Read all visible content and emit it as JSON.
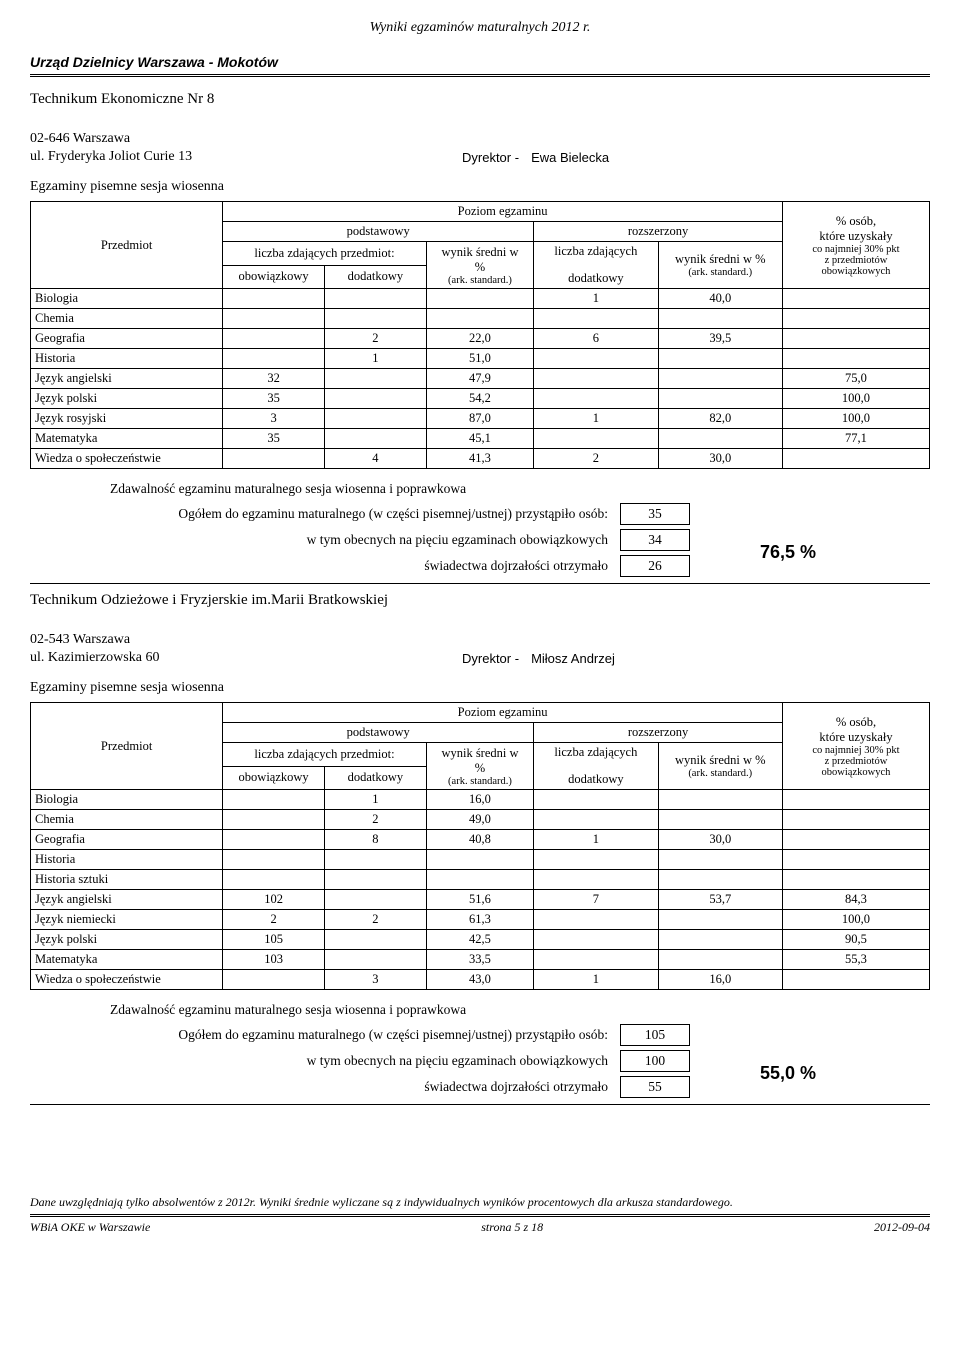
{
  "header": {
    "title": "Wyniki egzaminów maturalnych 2012 r.",
    "district": "Urząd Dzielnicy Warszawa - Mokotów"
  },
  "sections": [
    {
      "school_name": "Technikum Ekonomiczne Nr 8",
      "city": "02-646 Warszawa",
      "street": "ul. Fryderyka Joliot Curie 13",
      "director_label": "Dyrektor -",
      "director_name": "Ewa Bielecka",
      "session_title": "Egzaminy pisemne sesja wiosenna",
      "rows": [
        {
          "subject": "Biologia",
          "o": "",
          "d": "",
          "w": "",
          "ld": "1",
          "wr": "40,0",
          "pp": ""
        },
        {
          "subject": "Chemia",
          "o": "",
          "d": "",
          "w": "",
          "ld": "",
          "wr": "",
          "pp": ""
        },
        {
          "subject": "Geografia",
          "o": "",
          "d": "2",
          "w": "22,0",
          "ld": "6",
          "wr": "39,5",
          "pp": ""
        },
        {
          "subject": "Historia",
          "o": "",
          "d": "1",
          "w": "51,0",
          "ld": "",
          "wr": "",
          "pp": ""
        },
        {
          "subject": "Język angielski",
          "o": "32",
          "d": "",
          "w": "47,9",
          "ld": "",
          "wr": "",
          "pp": "75,0"
        },
        {
          "subject": "Język polski",
          "o": "35",
          "d": "",
          "w": "54,2",
          "ld": "",
          "wr": "",
          "pp": "100,0"
        },
        {
          "subject": "Język rosyjski",
          "o": "3",
          "d": "",
          "w": "87,0",
          "ld": "1",
          "wr": "82,0",
          "pp": "100,0"
        },
        {
          "subject": "Matematyka",
          "o": "35",
          "d": "",
          "w": "45,1",
          "ld": "",
          "wr": "",
          "pp": "77,1"
        },
        {
          "subject": "Wiedza o społeczeństwie",
          "o": "",
          "d": "4",
          "w": "41,3",
          "ld": "2",
          "wr": "30,0",
          "pp": ""
        }
      ],
      "pass": {
        "title": "Zdawalność egzaminu maturalnego sesja wiosenna i poprawkowa",
        "l1": "Ogółem do egzaminu maturalnego (w części pisemnej/ustnej) przystąpiło osób:",
        "l2": "w tym obecnych na pięciu egzaminach obowiązkowych",
        "l3": "świadectwa dojrzałości otrzymało",
        "v1": "35",
        "v2": "34",
        "v3": "26",
        "pct": "76,5 %"
      }
    },
    {
      "school_name": "Technikum Odzieżowe i Fryzjerskie im.Marii Bratkowskiej",
      "city": "02-543 Warszawa",
      "street": "ul. Kazimierzowska 60",
      "director_label": "Dyrektor -",
      "director_name": "Miłosz Andrzej",
      "session_title": "Egzaminy pisemne sesja wiosenna",
      "rows": [
        {
          "subject": "Biologia",
          "o": "",
          "d": "1",
          "w": "16,0",
          "ld": "",
          "wr": "",
          "pp": ""
        },
        {
          "subject": "Chemia",
          "o": "",
          "d": "2",
          "w": "49,0",
          "ld": "",
          "wr": "",
          "pp": ""
        },
        {
          "subject": "Geografia",
          "o": "",
          "d": "8",
          "w": "40,8",
          "ld": "1",
          "wr": "30,0",
          "pp": ""
        },
        {
          "subject": "Historia",
          "o": "",
          "d": "",
          "w": "",
          "ld": "",
          "wr": "",
          "pp": ""
        },
        {
          "subject": "Historia sztuki",
          "o": "",
          "d": "",
          "w": "",
          "ld": "",
          "wr": "",
          "pp": ""
        },
        {
          "subject": "Język angielski",
          "o": "102",
          "d": "",
          "w": "51,6",
          "ld": "7",
          "wr": "53,7",
          "pp": "84,3"
        },
        {
          "subject": "Język niemiecki",
          "o": "2",
          "d": "2",
          "w": "61,3",
          "ld": "",
          "wr": "",
          "pp": "100,0"
        },
        {
          "subject": "Język polski",
          "o": "105",
          "d": "",
          "w": "42,5",
          "ld": "",
          "wr": "",
          "pp": "90,5"
        },
        {
          "subject": "Matematyka",
          "o": "103",
          "d": "",
          "w": "33,5",
          "ld": "",
          "wr": "",
          "pp": "55,3"
        },
        {
          "subject": "Wiedza o społeczeństwie",
          "o": "",
          "d": "3",
          "w": "43,0",
          "ld": "1",
          "wr": "16,0",
          "pp": ""
        }
      ],
      "pass": {
        "title": "Zdawalność egzaminu maturalnego sesja wiosenna i poprawkowa",
        "l1": "Ogółem do egzaminu maturalnego (w części pisemnej/ustnej) przystąpiło osób:",
        "l2": "w tym obecnych na pięciu egzaminach obowiązkowych",
        "l3": "świadectwa dojrzałości otrzymało",
        "v1": "105",
        "v2": "100",
        "v3": "55",
        "pct": "55,0 %"
      }
    }
  ],
  "columns": {
    "subject": "Przedmiot",
    "poziom": "Poziom egzaminu",
    "podstawowy": "podstawowy",
    "rozszerzony": "rozszerzony",
    "liczba_przedmiot": "liczba zdających przedmiot:",
    "wynik_sredni_w": "wynik średni w",
    "pct": "%",
    "ark": "(ark. standard.)",
    "liczba_zdajacych": "liczba zdających",
    "wynik_pct": "wynik średni w %",
    "obowiazkowy": "obowiązkowy",
    "dodatkowy": "dodatkowy",
    "osob": "% osób,",
    "ktore": "które uzyskały",
    "najmniej": "co najmniej 30% pkt",
    "zprzed": "z przedmiotów",
    "obow": "obowiązkowych"
  },
  "footer": {
    "note": "Dane uwzględniają tylko absolwentów z 2012r. Wyniki średnie wyliczane są z indywidualnych wyników procentowych dla arkusza standardowego.",
    "left": "WBiA OKE w Warszawie",
    "center": "strona 5 z 18",
    "right": "2012-09-04"
  }
}
